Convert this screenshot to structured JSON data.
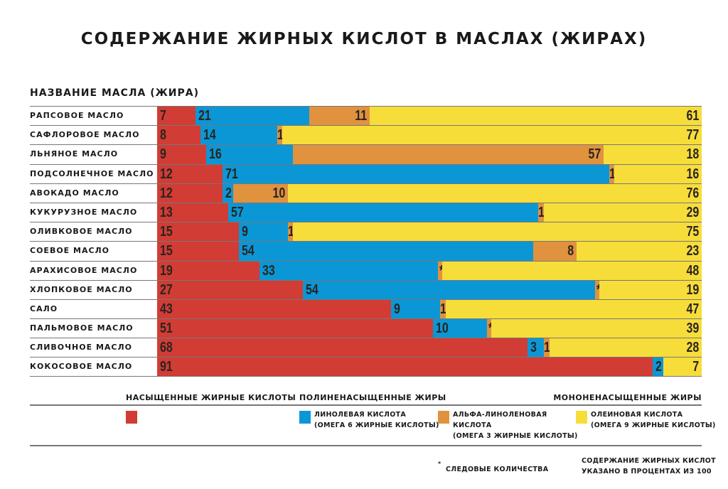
{
  "chart_data": {
    "type": "bar",
    "orientation": "horizontal",
    "stacked": true,
    "title": "СОДЕРЖАНИЕ ЖИРНЫХ КИСЛОТ В МАСЛАХ (ЖИРАХ)",
    "ylabel": "НАЗВАНИЕ МАСЛА (ЖИРА)",
    "xlim": [
      0,
      100
    ],
    "categories": [
      "РАПСОВОЕ МАСЛО",
      "САФЛОРОВОЕ МАСЛО",
      "ЛЬНЯНОЕ МАСЛО",
      "ПОДСОЛНЕЧНОЕ МАСЛО",
      "АВОКАДО МАСЛО",
      "КУКУРУЗНОЕ МАСЛО",
      "ОЛИВКОВОЕ МАСЛО",
      "СОЕВОЕ МАСЛО",
      "АРАХИСОВОЕ МАСЛО",
      "ХЛОПКОВОЕ МАСЛО",
      "САЛО",
      "ПАЛЬМОВОЕ МАСЛО",
      "СЛИВОЧНОЕ МАСЛО",
      "КОКОСОВОЕ МАСЛО"
    ],
    "series": [
      {
        "name": "НАСЫЩЕННЫЕ ЖИРНЫЕ КИСЛОТЫ",
        "color": "#d13c35",
        "values": [
          7,
          8,
          9,
          12,
          12,
          13,
          15,
          15,
          19,
          27,
          43,
          51,
          68,
          91
        ]
      },
      {
        "name": "ЛИНОЛЕВАЯ КИСЛОТА (ОМЕГА 6 ЖИРНЫЕ КИСЛОТЫ)",
        "color": "#0b97d6",
        "values": [
          21,
          14,
          16,
          71,
          2,
          57,
          9,
          54,
          33,
          54,
          9,
          10,
          3,
          2
        ]
      },
      {
        "name": "АЛЬФА-ЛИНОЛЕНОВАЯ КИСЛОТА (ОМЕГА 3 ЖИРНЫЕ КИСЛОТЫ)",
        "color": "#e0923f",
        "values": [
          11,
          1,
          57,
          1,
          10,
          1,
          1,
          8,
          "*",
          "*",
          1,
          "*",
          1,
          0
        ]
      },
      {
        "name": "ОЛЕИНОВАЯ КИСЛОТА (ОМЕГА 9 ЖИРНЫЕ КИСЛОТЫ)",
        "color": "#f6dd3a",
        "values": [
          61,
          77,
          18,
          16,
          76,
          29,
          75,
          23,
          48,
          19,
          47,
          39,
          28,
          7
        ]
      }
    ]
  },
  "legend": {
    "saturated_heading": "НАСЫЩЕННЫЕ ЖИРНЫЕ КИСЛОТЫ",
    "poly_heading": "ПОЛИНЕНАСЫЩЕННЫЕ ЖИРЫ",
    "mono_heading": "МОНОНЕНАСЫЩЕННЫЕ ЖИРЫ",
    "linoleic": [
      "ЛИНОЛЕВАЯ КИСЛОТА",
      "(ОМЕГА 6 ЖИРНЫЕ КИСЛОТЫ)"
    ],
    "alpha": [
      "АЛЬФА-ЛИНОЛЕНОВАЯ",
      "КИСЛОТА",
      "(ОМЕГА 3 ЖИРНЫЕ КИСЛОТЫ)"
    ],
    "oleic": [
      "ОЛЕИНОВАЯ КИСЛОТА",
      "(ОМЕГА 9 ЖИРНЫЕ КИСЛОТЫ)"
    ]
  },
  "footer": {
    "trace_symbol": "*",
    "trace_label": "СЛЕДОВЫЕ КОЛИЧЕСТВА",
    "note": [
      "СОДЕРЖАНИЕ ЖИРНЫХ КИСЛОТ",
      "УКАЗАНО В ПРОЦЕНТАХ ИЗ 100"
    ]
  }
}
